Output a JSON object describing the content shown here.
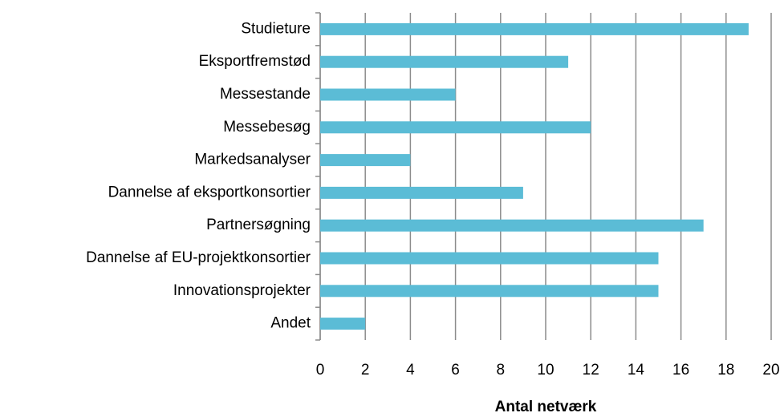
{
  "chart_data": {
    "type": "bar",
    "orientation": "horizontal",
    "x_axis_label": "Antal netværk",
    "categories": [
      "Studieture",
      "Eksportfremstød",
      "Messestande",
      "Messebesøg",
      "Markedsanalyser",
      "Dannelse af eksportkonsortier",
      "Partnersøgning",
      "Dannelse af EU-projektkonsortier",
      "Innovationsprojekter",
      "Andet"
    ],
    "values": [
      19,
      11,
      6,
      12,
      4,
      9,
      17,
      15,
      15,
      2
    ],
    "color": "#5bbcd6",
    "xlim": [
      0,
      20
    ],
    "xticks": [
      0,
      2,
      4,
      6,
      8,
      10,
      12,
      14,
      16,
      18,
      20
    ],
    "grid": true
  }
}
